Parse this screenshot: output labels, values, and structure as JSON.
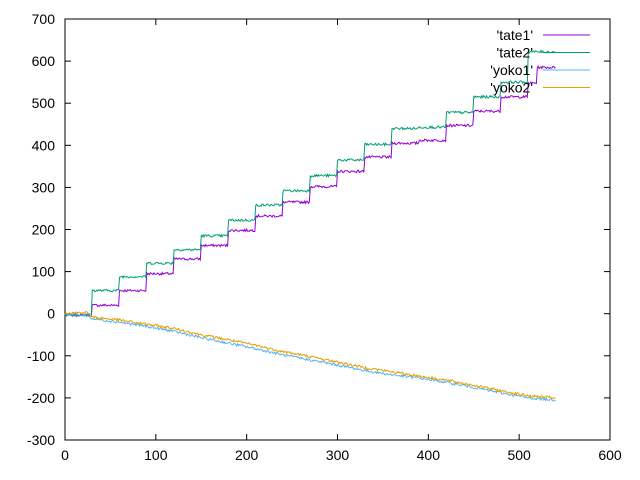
{
  "chart_data": {
    "type": "line",
    "title": "",
    "xlabel": "",
    "ylabel": "",
    "xlim": [
      0,
      600
    ],
    "ylim": [
      -300,
      700
    ],
    "x_ticks": [
      0,
      100,
      200,
      300,
      400,
      500,
      600
    ],
    "y_ticks": [
      -300,
      -200,
      -100,
      0,
      100,
      200,
      300,
      400,
      500,
      600,
      700
    ],
    "grid": false,
    "legend_position": "top-right",
    "series": [
      {
        "name": "'tate1'",
        "color": "#9400d3",
        "points": [
          [
            0,
            -3
          ],
          [
            29,
            -3
          ],
          [
            30,
            20
          ],
          [
            59,
            20
          ],
          [
            60,
            55
          ],
          [
            89,
            55
          ],
          [
            90,
            95
          ],
          [
            119,
            95
          ],
          [
            120,
            130
          ],
          [
            149,
            130
          ],
          [
            150,
            162
          ],
          [
            179,
            162
          ],
          [
            180,
            198
          ],
          [
            209,
            198
          ],
          [
            210,
            232
          ],
          [
            239,
            232
          ],
          [
            240,
            265
          ],
          [
            269,
            265
          ],
          [
            270,
            302
          ],
          [
            299,
            302
          ],
          [
            300,
            338
          ],
          [
            329,
            338
          ],
          [
            330,
            372
          ],
          [
            359,
            372
          ],
          [
            360,
            405
          ],
          [
            389,
            405
          ],
          [
            390,
            412
          ],
          [
            419,
            412
          ],
          [
            420,
            447
          ],
          [
            449,
            447
          ],
          [
            450,
            481
          ],
          [
            479,
            481
          ],
          [
            480,
            515
          ],
          [
            509,
            515
          ],
          [
            510,
            548
          ],
          [
            519,
            548
          ],
          [
            520,
            585
          ],
          [
            540,
            585
          ]
        ]
      },
      {
        "name": "'tate2'",
        "color": "#009e73",
        "points": [
          [
            0,
            -3
          ],
          [
            29,
            -3
          ],
          [
            30,
            55
          ],
          [
            59,
            55
          ],
          [
            60,
            88
          ],
          [
            89,
            88
          ],
          [
            90,
            120
          ],
          [
            119,
            120
          ],
          [
            120,
            152
          ],
          [
            149,
            152
          ],
          [
            150,
            185
          ],
          [
            179,
            185
          ],
          [
            180,
            222
          ],
          [
            209,
            222
          ],
          [
            210,
            258
          ],
          [
            239,
            258
          ],
          [
            240,
            292
          ],
          [
            269,
            292
          ],
          [
            270,
            328
          ],
          [
            299,
            328
          ],
          [
            300,
            365
          ],
          [
            329,
            365
          ],
          [
            330,
            402
          ],
          [
            359,
            402
          ],
          [
            360,
            440
          ],
          [
            389,
            440
          ],
          [
            390,
            443
          ],
          [
            419,
            443
          ],
          [
            420,
            478
          ],
          [
            449,
            478
          ],
          [
            450,
            515
          ],
          [
            479,
            515
          ],
          [
            480,
            550
          ],
          [
            509,
            550
          ],
          [
            510,
            622
          ],
          [
            540,
            622
          ]
        ]
      },
      {
        "name": "'yoko1'",
        "color": "#56b4e9",
        "points": [
          [
            0,
            0
          ],
          [
            25,
            -5
          ],
          [
            30,
            -12
          ],
          [
            60,
            -20
          ],
          [
            90,
            -30
          ],
          [
            120,
            -42
          ],
          [
            150,
            -57
          ],
          [
            180,
            -70
          ],
          [
            210,
            -83
          ],
          [
            240,
            -98
          ],
          [
            270,
            -110
          ],
          [
            300,
            -122
          ],
          [
            330,
            -135
          ],
          [
            360,
            -145
          ],
          [
            390,
            -153
          ],
          [
            420,
            -163
          ],
          [
            450,
            -175
          ],
          [
            480,
            -188
          ],
          [
            510,
            -200
          ],
          [
            540,
            -205
          ]
        ]
      },
      {
        "name": "'yoko2'",
        "color": "#e69f00",
        "points": [
          [
            0,
            2
          ],
          [
            25,
            3
          ],
          [
            30,
            -8
          ],
          [
            60,
            -15
          ],
          [
            90,
            -25
          ],
          [
            120,
            -35
          ],
          [
            150,
            -50
          ],
          [
            180,
            -62
          ],
          [
            210,
            -75
          ],
          [
            240,
            -90
          ],
          [
            270,
            -102
          ],
          [
            300,
            -115
          ],
          [
            330,
            -128
          ],
          [
            360,
            -138
          ],
          [
            390,
            -148
          ],
          [
            420,
            -158
          ],
          [
            450,
            -170
          ],
          [
            480,
            -183
          ],
          [
            510,
            -195
          ],
          [
            540,
            -200
          ]
        ]
      }
    ]
  }
}
